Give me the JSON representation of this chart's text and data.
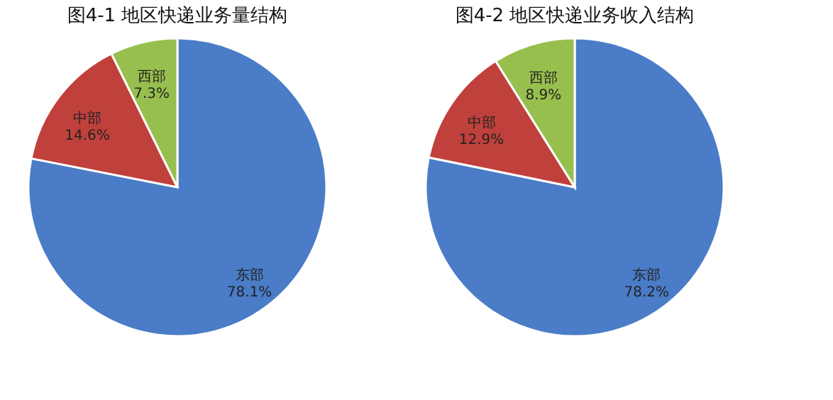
{
  "chart_data": [
    {
      "type": "pie",
      "title": "图4-1    地区快递业务量结构",
      "categories": [
        "东部",
        "中部",
        "西部"
      ],
      "values": [
        78.1,
        14.6,
        7.3
      ],
      "value_labels": [
        "78.1%",
        "14.6%",
        "7.3%"
      ],
      "colors": [
        "#4a7cc7",
        "#c0403c",
        "#97bf4e"
      ],
      "legend": false
    },
    {
      "type": "pie",
      "title": "图4-2    地区快递业务收入结构",
      "categories": [
        "东部",
        "中部",
        "西部"
      ],
      "values": [
        78.2,
        12.9,
        8.9
      ],
      "value_labels": [
        "78.2%",
        "12.9%",
        "8.9%"
      ],
      "colors": [
        "#4a7cc7",
        "#c0403c",
        "#97bf4e"
      ],
      "legend": false
    }
  ]
}
